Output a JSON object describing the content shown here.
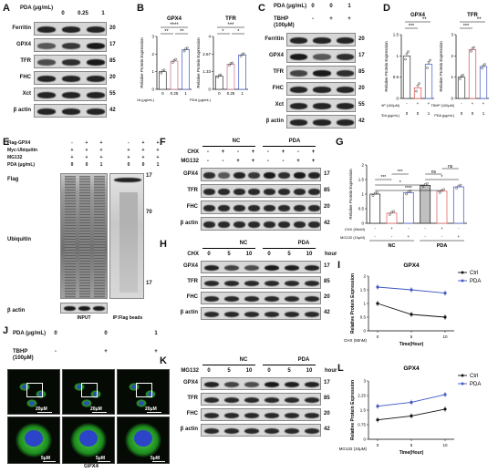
{
  "panels": {
    "A": {
      "letter": "A",
      "pda_label": "PDA (μg/mL)",
      "doses": [
        "0",
        "0.25",
        "1"
      ],
      "rows": [
        {
          "name": "Ferritin",
          "kda": "20"
        },
        {
          "name": "GPX4",
          "kda": "17"
        },
        {
          "name": "TFR",
          "kda": "85"
        },
        {
          "name": "FHC",
          "kda": "20"
        },
        {
          "name": "Xct",
          "kda": "55"
        },
        {
          "name": "β actin",
          "kda": "42"
        }
      ]
    },
    "B": {
      "letter": "B",
      "ylabel": "Relative Protein Expression",
      "xlabel": "PDA (μg/mL)",
      "charts": [
        {
          "title": "GPX4",
          "categories": [
            "0",
            "0.25",
            "1"
          ],
          "values": [
            1.0,
            1.6,
            2.25
          ],
          "ylim": [
            0,
            3
          ],
          "sig_top": "****",
          "sig_pairs": [
            "**",
            "**"
          ]
        },
        {
          "title": "TFR",
          "categories": [
            "0",
            "0.25",
            "1"
          ],
          "values": [
            1.0,
            1.9,
            2.6
          ],
          "ylim": [
            0,
            4
          ],
          "sig_top": "***",
          "sig_pairs": [
            "*",
            "*"
          ]
        }
      ]
    },
    "C": {
      "letter": "C",
      "pda_label": "PDA (μg/mL)",
      "pda_vals": [
        "0",
        "0",
        "1"
      ],
      "tbhp_label": "TBHP (100μM)",
      "tbhp_vals": [
        "-",
        "+",
        "+"
      ],
      "rows": [
        {
          "name": "Ferritin",
          "kda": "20"
        },
        {
          "name": "GPX4",
          "kda": "17"
        },
        {
          "name": "TFR",
          "kda": "85"
        },
        {
          "name": "FHC",
          "kda": "20"
        },
        {
          "name": "Xct",
          "kda": "55"
        },
        {
          "name": "β actin",
          "kda": "42"
        }
      ]
    },
    "D": {
      "letter": "D",
      "ylabel": "Relative Protein Expression",
      "tbhp_label": "TBHP (100μM)",
      "pda_label": "PDA (μg/mL)",
      "tbhp_vals": [
        "-",
        "+",
        "+"
      ],
      "pda_vals": [
        "0",
        "0",
        "1"
      ],
      "charts": [
        {
          "title": "GPX4",
          "values": [
            1.0,
            0.25,
            0.8
          ],
          "ylim": [
            0,
            1.5
          ],
          "sig_top": "**",
          "sig_pair": "***"
        },
        {
          "title": "TFR",
          "values": [
            1.0,
            2.3,
            1.5
          ],
          "ylim": [
            0,
            3
          ],
          "sig_top": "**",
          "sig_pair": "***"
        }
      ]
    },
    "E": {
      "letter": "E",
      "rows_hdr": [
        {
          "name": "Flag-GPX4",
          "vals": [
            "-",
            "+",
            "+",
            "-",
            "+",
            "+"
          ]
        },
        {
          "name": "Myc-Ubiquitin",
          "vals": [
            "+",
            "+",
            "+",
            "+",
            "+",
            "+"
          ]
        },
        {
          "name": "MG132",
          "vals": [
            "+",
            "+",
            "+",
            "+",
            "+",
            "+"
          ]
        },
        {
          "name": "PDA (μg/mL)",
          "vals": [
            "0",
            "0",
            "1",
            "0",
            "0",
            "1"
          ]
        }
      ],
      "flag": "Flag",
      "ubiquitin": "Ubiquitin",
      "actin": "β actin",
      "kda": [
        "17",
        "70",
        "17"
      ],
      "input": "INPUT",
      "ip": "IP:Flag beads"
    },
    "F": {
      "letter": "F",
      "groups": [
        "NC",
        "PDA"
      ],
      "chx_label": "CHX",
      "chx_vals": [
        "-",
        "+",
        "-",
        "+",
        "-",
        "+",
        "-",
        "+"
      ],
      "mg_label": "MG132",
      "mg_vals": [
        "-",
        "-",
        "+",
        "+",
        "-",
        "-",
        "+",
        "+"
      ],
      "rows": [
        {
          "name": "GPX4",
          "kda": "17"
        },
        {
          "name": "TFR",
          "kda": "85"
        },
        {
          "name": "FHC",
          "kda": "20"
        },
        {
          "name": "β actin",
          "kda": "42"
        }
      ]
    },
    "G": {
      "letter": "G",
      "ylabel": "Relative Protein Expression",
      "chx_label": "CHX (50nM)",
      "mg_label": "MG132 (10μM)",
      "chx_vals": [
        "-",
        "+",
        "-",
        "-",
        "+",
        "-"
      ],
      "mg_vals": [
        "-",
        "-",
        "+",
        "-",
        "-",
        "+"
      ],
      "groups": [
        "NC",
        "PDA"
      ],
      "sig": [
        "****",
        "*",
        "***",
        "*",
        "***",
        "ns",
        "ns"
      ]
    },
    "H": {
      "letter": "H",
      "groups": [
        "NC",
        "PDA"
      ],
      "chx_label": "CHX",
      "times": [
        "0",
        "5",
        "10",
        "0",
        "5",
        "10"
      ],
      "hour": "hour",
      "rows": [
        {
          "name": "GPX4",
          "kda": "17"
        },
        {
          "name": "TFR",
          "kda": "85"
        },
        {
          "name": "FHC",
          "kda": "20"
        },
        {
          "name": "β actin",
          "kda": "42"
        }
      ]
    },
    "I": {
      "letter": "I",
      "title": "GPX4",
      "ylabel": "Relative Protein Expression",
      "xlabel": "Time(Hour)",
      "cond": "CHX (50nM)",
      "legend": [
        "Ctrl",
        "PDA"
      ]
    },
    "J": {
      "letter": "J",
      "pda_label": "PDA (μg/mL)",
      "pda_vals": [
        "0",
        "0",
        "1"
      ],
      "tbhp_label": "TBHP (100μM)",
      "tbhp_vals": [
        "-",
        "+",
        "+"
      ],
      "scale_top": "20μM",
      "scale_bot": "5μM",
      "caption": "GPX4"
    },
    "K": {
      "letter": "K",
      "groups": [
        "NC",
        "PDA"
      ],
      "mg_label": "MG132",
      "times": [
        "0",
        "5",
        "10",
        "0",
        "5",
        "10"
      ],
      "hour": "hour",
      "rows": [
        {
          "name": "GPX4",
          "kda": "17"
        },
        {
          "name": "TFR",
          "kda": "85"
        },
        {
          "name": "FHC",
          "kda": "20"
        },
        {
          "name": "β actin",
          "kda": "42"
        }
      ]
    },
    "L": {
      "letter": "L",
      "title": "GPX4",
      "ylabel": "Relative Protein Expression",
      "xlabel": "Time(Hour)",
      "cond": "MG132 (10μM)",
      "legend": [
        "Ctrl",
        "PDA"
      ]
    }
  },
  "chart_data": [
    {
      "type": "bar",
      "title": "GPX4",
      "categories": [
        "0",
        "0.25",
        "1"
      ],
      "values": [
        1.0,
        1.6,
        2.25
      ],
      "ylabel": "Relative Protein Expression",
      "xlabel": "PDA (μg/mL)",
      "ylim": [
        0,
        3
      ]
    },
    {
      "type": "bar",
      "title": "TFR",
      "categories": [
        "0",
        "0.25",
        "1"
      ],
      "values": [
        1.0,
        1.9,
        2.6
      ],
      "ylabel": "Relative Protein Expression",
      "xlabel": "PDA (μg/mL)",
      "ylim": [
        0,
        4
      ]
    },
    {
      "type": "bar",
      "title": "GPX4",
      "categories": [
        "TBHP- PDA0",
        "TBHP+ PDA0",
        "TBHP+ PDA1"
      ],
      "values": [
        1.0,
        0.25,
        0.8
      ],
      "ylabel": "Relative Protein Expression",
      "ylim": [
        0,
        1.5
      ]
    },
    {
      "type": "bar",
      "title": "TFR",
      "categories": [
        "TBHP- PDA0",
        "TBHP+ PDA0",
        "TBHP+ PDA1"
      ],
      "values": [
        1.0,
        2.3,
        1.5
      ],
      "ylabel": "Relative Protein Expression",
      "ylim": [
        0,
        3
      ]
    },
    {
      "type": "bar",
      "categories": [
        "NC",
        "NC CHX",
        "NC MG132",
        "PDA",
        "PDA CHX",
        "PDA MG132"
      ],
      "values": [
        1.0,
        0.35,
        1.05,
        1.3,
        1.1,
        1.25
      ],
      "colors": [
        "#ffffff",
        "#e56b6b",
        "#4f66c9",
        "#c0c0c0",
        "#e56b6b",
        "#4f66c9"
      ],
      "ylabel": "Relative Protein Expression",
      "ylim": [
        0,
        2.0
      ]
    },
    {
      "type": "line",
      "title": "GPX4",
      "x": [
        0,
        5,
        10
      ],
      "series": [
        {
          "name": "Ctrl",
          "values": [
            1.0,
            0.6,
            0.5
          ]
        },
        {
          "name": "PDA",
          "values": [
            1.6,
            1.5,
            1.38
          ]
        }
      ],
      "xlabel": "Time(Hour)",
      "ylabel": "Relative Protein Expression",
      "ylim": [
        0,
        2.0
      ]
    },
    {
      "type": "line",
      "title": "GPX4",
      "x": [
        0,
        5,
        10
      ],
      "series": [
        {
          "name": "Ctrl",
          "values": [
            1.0,
            1.2,
            1.55
          ]
        },
        {
          "name": "PDA",
          "values": [
            1.7,
            1.9,
            2.3
          ]
        }
      ],
      "xlabel": "Time(Hour)",
      "ylabel": "Relative Protein Expression",
      "ylim": [
        0,
        3
      ]
    }
  ]
}
